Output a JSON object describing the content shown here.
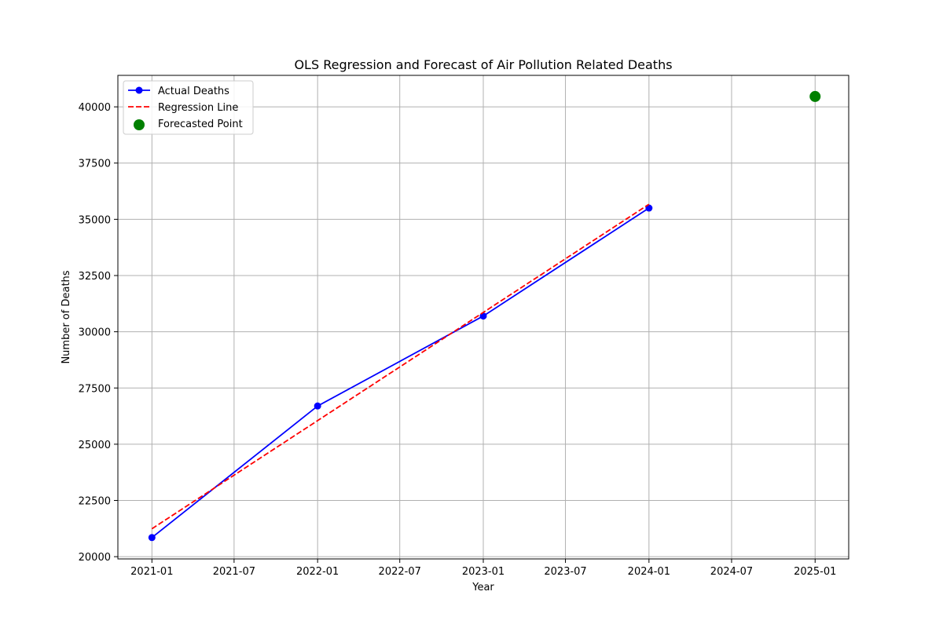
{
  "chart_data": {
    "type": "line",
    "title": "OLS Regression and Forecast of Air Pollution Related Deaths",
    "xlabel": "Year",
    "ylabel": "Number of Deaths",
    "xlim": [
      "2020-10-18",
      "2025-03-16"
    ],
    "ylim": [
      19900,
      41400
    ],
    "grid": true,
    "legend_position": "top-left",
    "x_ticks": [
      "2021-01",
      "2021-07",
      "2022-01",
      "2022-07",
      "2023-01",
      "2023-07",
      "2024-01",
      "2024-07",
      "2025-01"
    ],
    "x_tick_dates": [
      "2021-01-01",
      "2021-07-01",
      "2022-01-01",
      "2022-07-01",
      "2023-01-01",
      "2023-07-01",
      "2024-01-01",
      "2024-07-01",
      "2025-01-01"
    ],
    "y_ticks": [
      20000,
      22500,
      25000,
      27500,
      30000,
      32500,
      35000,
      37500,
      40000
    ],
    "series": [
      {
        "name": "Actual Deaths",
        "kind": "line-marker",
        "color": "#0000ff",
        "x": [
          "2021-01-01",
          "2022-01-01",
          "2023-01-01",
          "2024-01-01"
        ],
        "y": [
          20850,
          26700,
          30700,
          35500
        ]
      },
      {
        "name": "Regression Line",
        "kind": "dashed-line",
        "color": "#ff0000",
        "x": [
          "2021-01-01",
          "2022-01-01",
          "2023-01-01",
          "2024-01-01"
        ],
        "y": [
          21240,
          26050,
          30860,
          35670
        ]
      },
      {
        "name": "Forecasted Point",
        "kind": "scatter",
        "color": "#008000",
        "x": [
          "2025-01-01"
        ],
        "y": [
          40460
        ]
      }
    ]
  }
}
